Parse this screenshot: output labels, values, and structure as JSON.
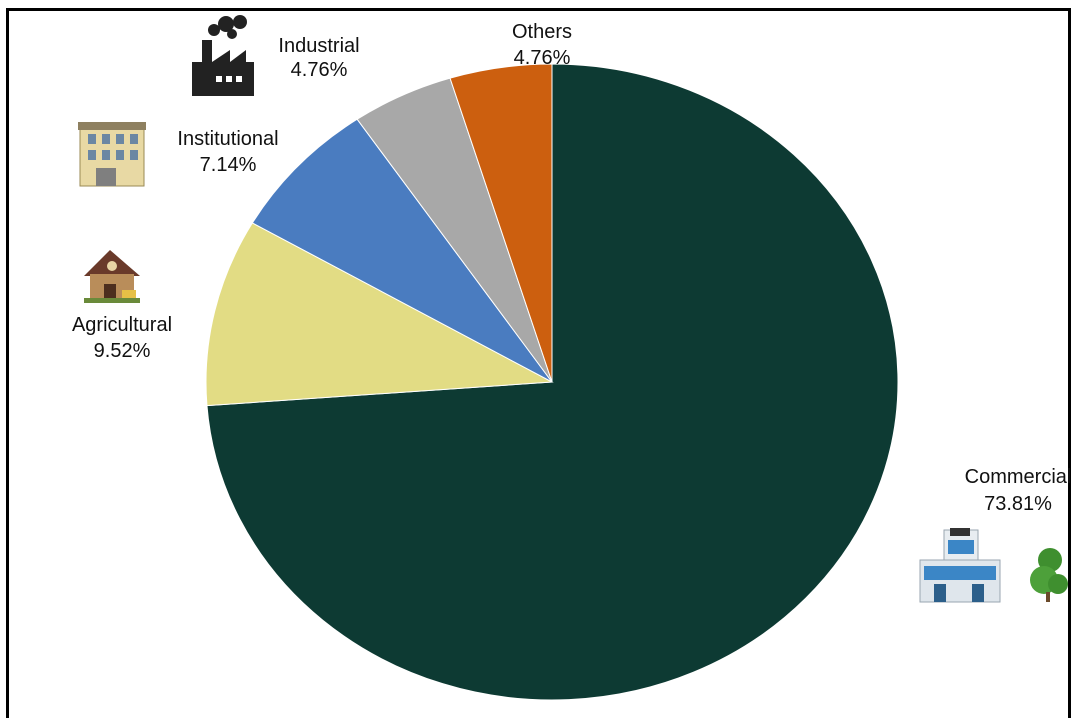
{
  "chart_data": {
    "type": "pie",
    "title": "",
    "start_angle_deg": 0,
    "direction": "clockwise",
    "slices": [
      {
        "label": "Commercial",
        "value": 73.81,
        "value_label": "73.81%",
        "color": "#0d3a33",
        "icon": "office-building-icon"
      },
      {
        "label": "Agricultural",
        "value": 9.52,
        "value_label": "9.52%",
        "color": "#e2dc84",
        "icon": "farmhouse-icon"
      },
      {
        "label": "Institutional",
        "value": 7.14,
        "value_label": "7.14%",
        "color": "#4a7cc0",
        "icon": "institutional-building-icon"
      },
      {
        "label": "Industrial",
        "value": 4.76,
        "value_label": "4.76%",
        "color": "#a8a8a8",
        "icon": "factory-icon"
      },
      {
        "label": "Others",
        "value": 4.76,
        "value_label": "4.76%",
        "color": "#cc5f0f",
        "icon": ""
      }
    ],
    "legend": "none"
  }
}
